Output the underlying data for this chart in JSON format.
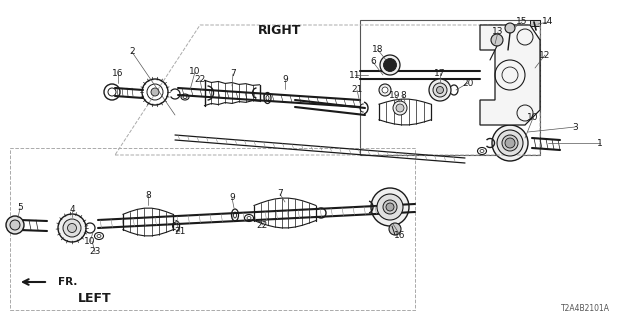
{
  "bg_color": "#ffffff",
  "diagram_code": "T2A4B2101A",
  "right_label": "RIGHT",
  "left_label": "LEFT",
  "fr_label": "FR.",
  "line_color": "#1a1a1a",
  "gray_light": "#cccccc",
  "gray_mid": "#888888",
  "gray_dark": "#444444"
}
